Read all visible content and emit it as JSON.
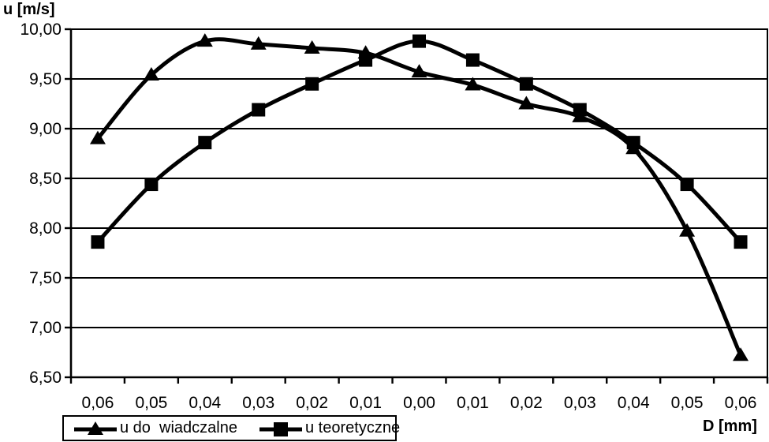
{
  "chart_data": {
    "type": "line",
    "title": "",
    "xlabel": "D [mm]",
    "ylabel": "u [m/s]",
    "x": [
      "0,06",
      "0,05",
      "0,04",
      "0,03",
      "0,02",
      "0,01",
      "0,00",
      "0,01",
      "0,02",
      "0,03",
      "0,04",
      "0,05",
      "0,06"
    ],
    "series": [
      {
        "name": "u do  wiadczalne",
        "marker": "triangle",
        "values": [
          8.9,
          9.54,
          9.88,
          9.85,
          9.81,
          9.76,
          9.57,
          9.44,
          9.25,
          9.12,
          8.8,
          7.97,
          6.72
        ]
      },
      {
        "name": "u teoretyczne",
        "marker": "square",
        "values": [
          7.86,
          8.44,
          8.86,
          9.19,
          9.45,
          9.69,
          9.88,
          9.69,
          9.45,
          9.19,
          8.86,
          8.44,
          7.86
        ]
      }
    ],
    "ylim": [
      6.5,
      10.0
    ],
    "ytick_step": 0.5,
    "ytick_labels": [
      "6,50",
      "7,00",
      "7,50",
      "8,00",
      "8,50",
      "9,00",
      "9,50",
      "10,00"
    ],
    "grid": true,
    "legend_position": "bottom-left",
    "line_color": "#000000",
    "background_color": "#ffffff"
  },
  "labels": {
    "y_axis_title": "u [m/s]",
    "x_axis_title": "D [mm]"
  }
}
